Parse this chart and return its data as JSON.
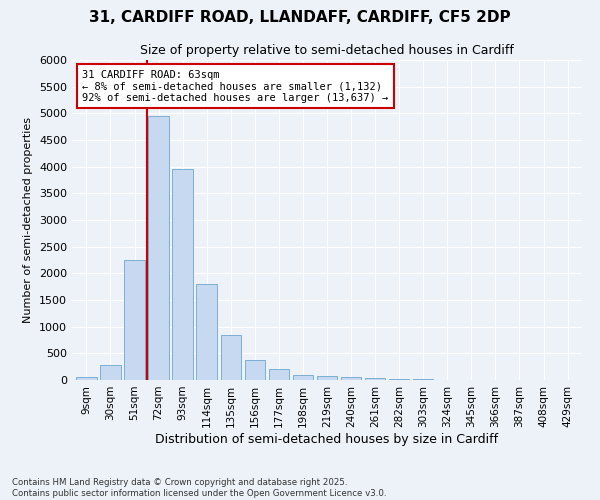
{
  "title_line1": "31, CARDIFF ROAD, LLANDAFF, CARDIFF, CF5 2DP",
  "title_line2": "Size of property relative to semi-detached houses in Cardiff",
  "xlabel": "Distribution of semi-detached houses by size in Cardiff",
  "ylabel": "Number of semi-detached properties",
  "categories": [
    "9sqm",
    "30sqm",
    "51sqm",
    "72sqm",
    "93sqm",
    "114sqm",
    "135sqm",
    "156sqm",
    "177sqm",
    "198sqm",
    "219sqm",
    "240sqm",
    "261sqm",
    "282sqm",
    "303sqm",
    "324sqm",
    "345sqm",
    "366sqm",
    "387sqm",
    "408sqm",
    "429sqm"
  ],
  "values": [
    50,
    280,
    2250,
    4950,
    3950,
    1800,
    850,
    380,
    200,
    100,
    80,
    60,
    30,
    15,
    10,
    5,
    3,
    2,
    1,
    1,
    0
  ],
  "bar_color": "#c6d9f0",
  "bar_edge_color": "#7bafd4",
  "property_label": "31 CARDIFF ROAD: 63sqm",
  "pct_smaller": 8,
  "pct_larger": 92,
  "n_smaller": 1132,
  "n_larger": 13637,
  "vline_color": "#cc0000",
  "vline_position": 2.5,
  "ylim": [
    0,
    6000
  ],
  "yticks": [
    0,
    500,
    1000,
    1500,
    2000,
    2500,
    3000,
    3500,
    4000,
    4500,
    5000,
    5500,
    6000
  ],
  "background_color": "#edf2f9",
  "plot_bg_color": "#edf2f9",
  "grid_color": "#ffffff",
  "footnote": "Contains HM Land Registry data © Crown copyright and database right 2025.\nContains public sector information licensed under the Open Government Licence v3.0."
}
